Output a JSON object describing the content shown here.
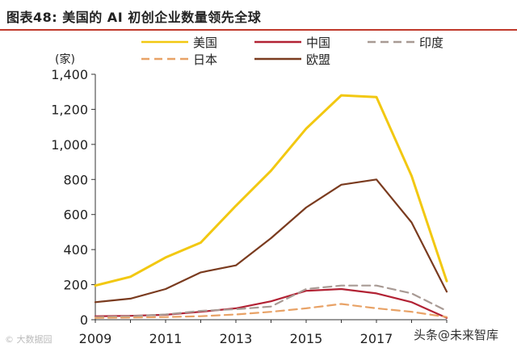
{
  "figure_title": "图表48:  美国的 AI 初创企业数量领先全球",
  "watermark_left": "© 大数据园",
  "watermark_right": "头条@未来智库",
  "chart_data": {
    "type": "line",
    "ylabel": "(家)",
    "ylim": [
      0,
      1400
    ],
    "yticks": [
      0,
      200,
      400,
      600,
      800,
      1000,
      1200,
      1400
    ],
    "ytick_labels": [
      "0",
      "200",
      "400",
      "600",
      "800",
      "1,000",
      "1,200",
      "1,400"
    ],
    "xlim": [
      2009,
      2019
    ],
    "xticks": [
      2009,
      2011,
      2013,
      2015,
      2017
    ],
    "x": [
      2009,
      2010,
      2011,
      2012,
      2013,
      2014,
      2015,
      2016,
      2017,
      2018,
      2019
    ],
    "grid": false,
    "legend_position": "top",
    "series": [
      {
        "name": "美国",
        "color": "#f2c811",
        "style": "solid",
        "values": [
          195,
          245,
          355,
          440,
          650,
          850,
          1090,
          1280,
          1270,
          820,
          220
        ]
      },
      {
        "name": "中国",
        "color": "#b22234",
        "style": "solid",
        "values": [
          20,
          22,
          28,
          45,
          65,
          105,
          165,
          175,
          150,
          100,
          10
        ]
      },
      {
        "name": "印度",
        "color": "#a89a94",
        "style": "dashed",
        "values": [
          15,
          20,
          30,
          50,
          60,
          75,
          175,
          195,
          195,
          150,
          50
        ]
      },
      {
        "name": "日本",
        "color": "#e8a266",
        "style": "dashed",
        "values": [
          10,
          12,
          15,
          20,
          30,
          45,
          65,
          90,
          65,
          45,
          15
        ]
      },
      {
        "name": "欧盟",
        "color": "#7a3b1f",
        "style": "solid",
        "values": [
          100,
          120,
          175,
          270,
          310,
          465,
          640,
          770,
          800,
          555,
          160
        ]
      }
    ]
  }
}
